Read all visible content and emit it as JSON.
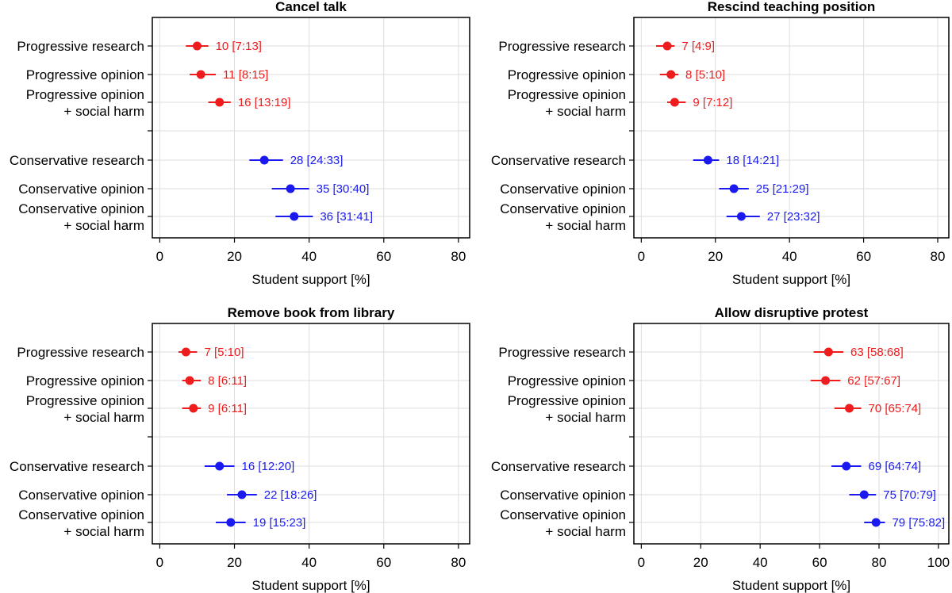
{
  "chart_data": [
    {
      "type": "scatter",
      "title": "Cancel talk",
      "xlabel": "Student support [%]",
      "ylabel": "",
      "xlim": [
        -2,
        83
      ],
      "xticks": [
        0,
        20,
        40,
        60,
        80
      ],
      "grid": true,
      "rows": [
        {
          "label": [
            "Progressive research"
          ],
          "value": 10,
          "low": 7,
          "high": 13,
          "text": "10 [7:13]",
          "group": "progressive"
        },
        {
          "label": [
            "Progressive opinion"
          ],
          "value": 11,
          "low": 8,
          "high": 15,
          "text": "11 [8:15]",
          "group": "progressive"
        },
        {
          "label": [
            "Progressive opinion",
            "+ social harm"
          ],
          "value": 16,
          "low": 13,
          "high": 19,
          "text": "16 [13:19]",
          "group": "progressive"
        },
        {
          "label": [
            "Conservative research"
          ],
          "value": 28,
          "low": 24,
          "high": 33,
          "text": "28 [24:33]",
          "group": "conservative"
        },
        {
          "label": [
            "Conservative opinion"
          ],
          "value": 35,
          "low": 30,
          "high": 40,
          "text": "35 [30:40]",
          "group": "conservative"
        },
        {
          "label": [
            "Conservative opinion",
            "+ social harm"
          ],
          "value": 36,
          "low": 31,
          "high": 41,
          "text": "36 [31:41]",
          "group": "conservative"
        }
      ]
    },
    {
      "type": "scatter",
      "title": "Rescind teaching position",
      "xlabel": "Student support [%]",
      "ylabel": "",
      "xlim": [
        -2,
        83
      ],
      "xticks": [
        0,
        20,
        40,
        60,
        80
      ],
      "grid": true,
      "rows": [
        {
          "label": [
            "Progressive research"
          ],
          "value": 7,
          "low": 4,
          "high": 9,
          "text": "7 [4:9]",
          "group": "progressive"
        },
        {
          "label": [
            "Progressive opinion"
          ],
          "value": 8,
          "low": 5,
          "high": 10,
          "text": "8 [5:10]",
          "group": "progressive"
        },
        {
          "label": [
            "Progressive opinion",
            "+ social harm"
          ],
          "value": 9,
          "low": 7,
          "high": 12,
          "text": "9 [7:12]",
          "group": "progressive"
        },
        {
          "label": [
            "Conservative research"
          ],
          "value": 18,
          "low": 14,
          "high": 21,
          "text": "18 [14:21]",
          "group": "conservative"
        },
        {
          "label": [
            "Conservative opinion"
          ],
          "value": 25,
          "low": 21,
          "high": 29,
          "text": "25 [21:29]",
          "group": "conservative"
        },
        {
          "label": [
            "Conservative opinion",
            "+ social harm"
          ],
          "value": 27,
          "low": 23,
          "high": 32,
          "text": "27 [23:32]",
          "group": "conservative"
        }
      ]
    },
    {
      "type": "scatter",
      "title": "Remove book from library",
      "xlabel": "Student support [%]",
      "ylabel": "",
      "xlim": [
        -2,
        83
      ],
      "xticks": [
        0,
        20,
        40,
        60,
        80
      ],
      "grid": true,
      "rows": [
        {
          "label": [
            "Progressive research"
          ],
          "value": 7,
          "low": 5,
          "high": 10,
          "text": "7 [5:10]",
          "group": "progressive"
        },
        {
          "label": [
            "Progressive opinion"
          ],
          "value": 8,
          "low": 6,
          "high": 11,
          "text": "8 [6:11]",
          "group": "progressive"
        },
        {
          "label": [
            "Progressive opinion",
            "+ social harm"
          ],
          "value": 9,
          "low": 6,
          "high": 11,
          "text": "9 [6:11]",
          "group": "progressive"
        },
        {
          "label": [
            "Conservative research"
          ],
          "value": 16,
          "low": 12,
          "high": 20,
          "text": "16 [12:20]",
          "group": "conservative"
        },
        {
          "label": [
            "Conservative opinion"
          ],
          "value": 22,
          "low": 18,
          "high": 26,
          "text": "22 [18:26]",
          "group": "conservative"
        },
        {
          "label": [
            "Conservative opinion",
            "+ social harm"
          ],
          "value": 19,
          "low": 15,
          "high": 23,
          "text": "19 [15:23]",
          "group": "conservative"
        }
      ]
    },
    {
      "type": "scatter",
      "title": "Allow disruptive protest",
      "xlabel": "Student support [%]",
      "ylabel": "",
      "xlim": [
        -2.5,
        103.5
      ],
      "xticks": [
        0,
        20,
        40,
        60,
        80,
        100
      ],
      "grid": true,
      "rows": [
        {
          "label": [
            "Progressive research"
          ],
          "value": 63,
          "low": 58,
          "high": 68,
          "text": "63 [58:68]",
          "group": "progressive"
        },
        {
          "label": [
            "Progressive opinion"
          ],
          "value": 62,
          "low": 57,
          "high": 67,
          "text": "62 [57:67]",
          "group": "progressive"
        },
        {
          "label": [
            "Progressive opinion",
            "+ social harm"
          ],
          "value": 70,
          "low": 65,
          "high": 74,
          "text": "70 [65:74]",
          "group": "progressive"
        },
        {
          "label": [
            "Conservative research"
          ],
          "value": 69,
          "low": 64,
          "high": 74,
          "text": "69 [64:74]",
          "group": "conservative"
        },
        {
          "label": [
            "Conservative opinion"
          ],
          "value": 75,
          "low": 70,
          "high": 79,
          "text": "75 [70:79]",
          "group": "conservative"
        },
        {
          "label": [
            "Conservative opinion",
            "+ social harm"
          ],
          "value": 79,
          "low": 75,
          "high": 82,
          "text": "79 [75:82]",
          "group": "conservative"
        }
      ]
    }
  ],
  "colors": {
    "progressive": "#ee1c1c",
    "conservative": "#1a1aee",
    "grid": "#dedede",
    "frame": "#000000"
  }
}
